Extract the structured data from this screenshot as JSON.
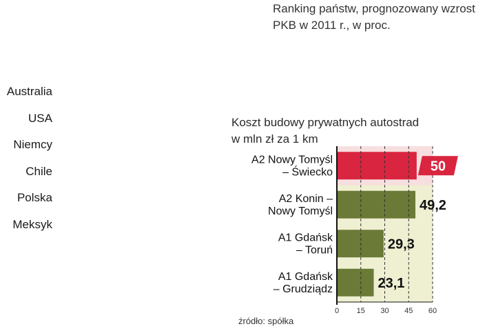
{
  "header": {
    "line1": "Ranking państw, prognozowany wzrost",
    "line2": "PKB w 2011 r., w proc."
  },
  "left_list": [
    "Australia",
    "USA",
    "Niemcy",
    "Chile",
    "Polska",
    "Meksyk"
  ],
  "chart_data": {
    "type": "bar",
    "orientation": "horizontal",
    "title_lines": [
      "Koszt budowy prywatnych autostrad",
      "w mln zł za 1 km"
    ],
    "categories": [
      [
        "A2 Nowy Tomyśl",
        "– Świecko"
      ],
      [
        "A2 Konin –",
        "Nowy Tomyśl"
      ],
      [
        "A1 Gdańsk",
        "– Toruń"
      ],
      [
        "A1 Gdańsk",
        "– Grudziądz"
      ]
    ],
    "values": [
      50,
      49.2,
      29.3,
      23.1
    ],
    "value_labels": [
      "50",
      "49,2",
      "29,3",
      "23,1"
    ],
    "highlight_index": 0,
    "xlim": [
      0,
      60
    ],
    "ticks": [
      0,
      15,
      30,
      45,
      60
    ],
    "tick_labels": [
      "0",
      "15",
      "30",
      "45",
      "60"
    ],
    "grid": "dashed-vertical",
    "colors": {
      "highlight_bar": "#d9253f",
      "bar": "#6b7a37",
      "highlight_band": "#f7dfe0",
      "band": "#efefd2"
    }
  },
  "source": "źródło: spółka"
}
